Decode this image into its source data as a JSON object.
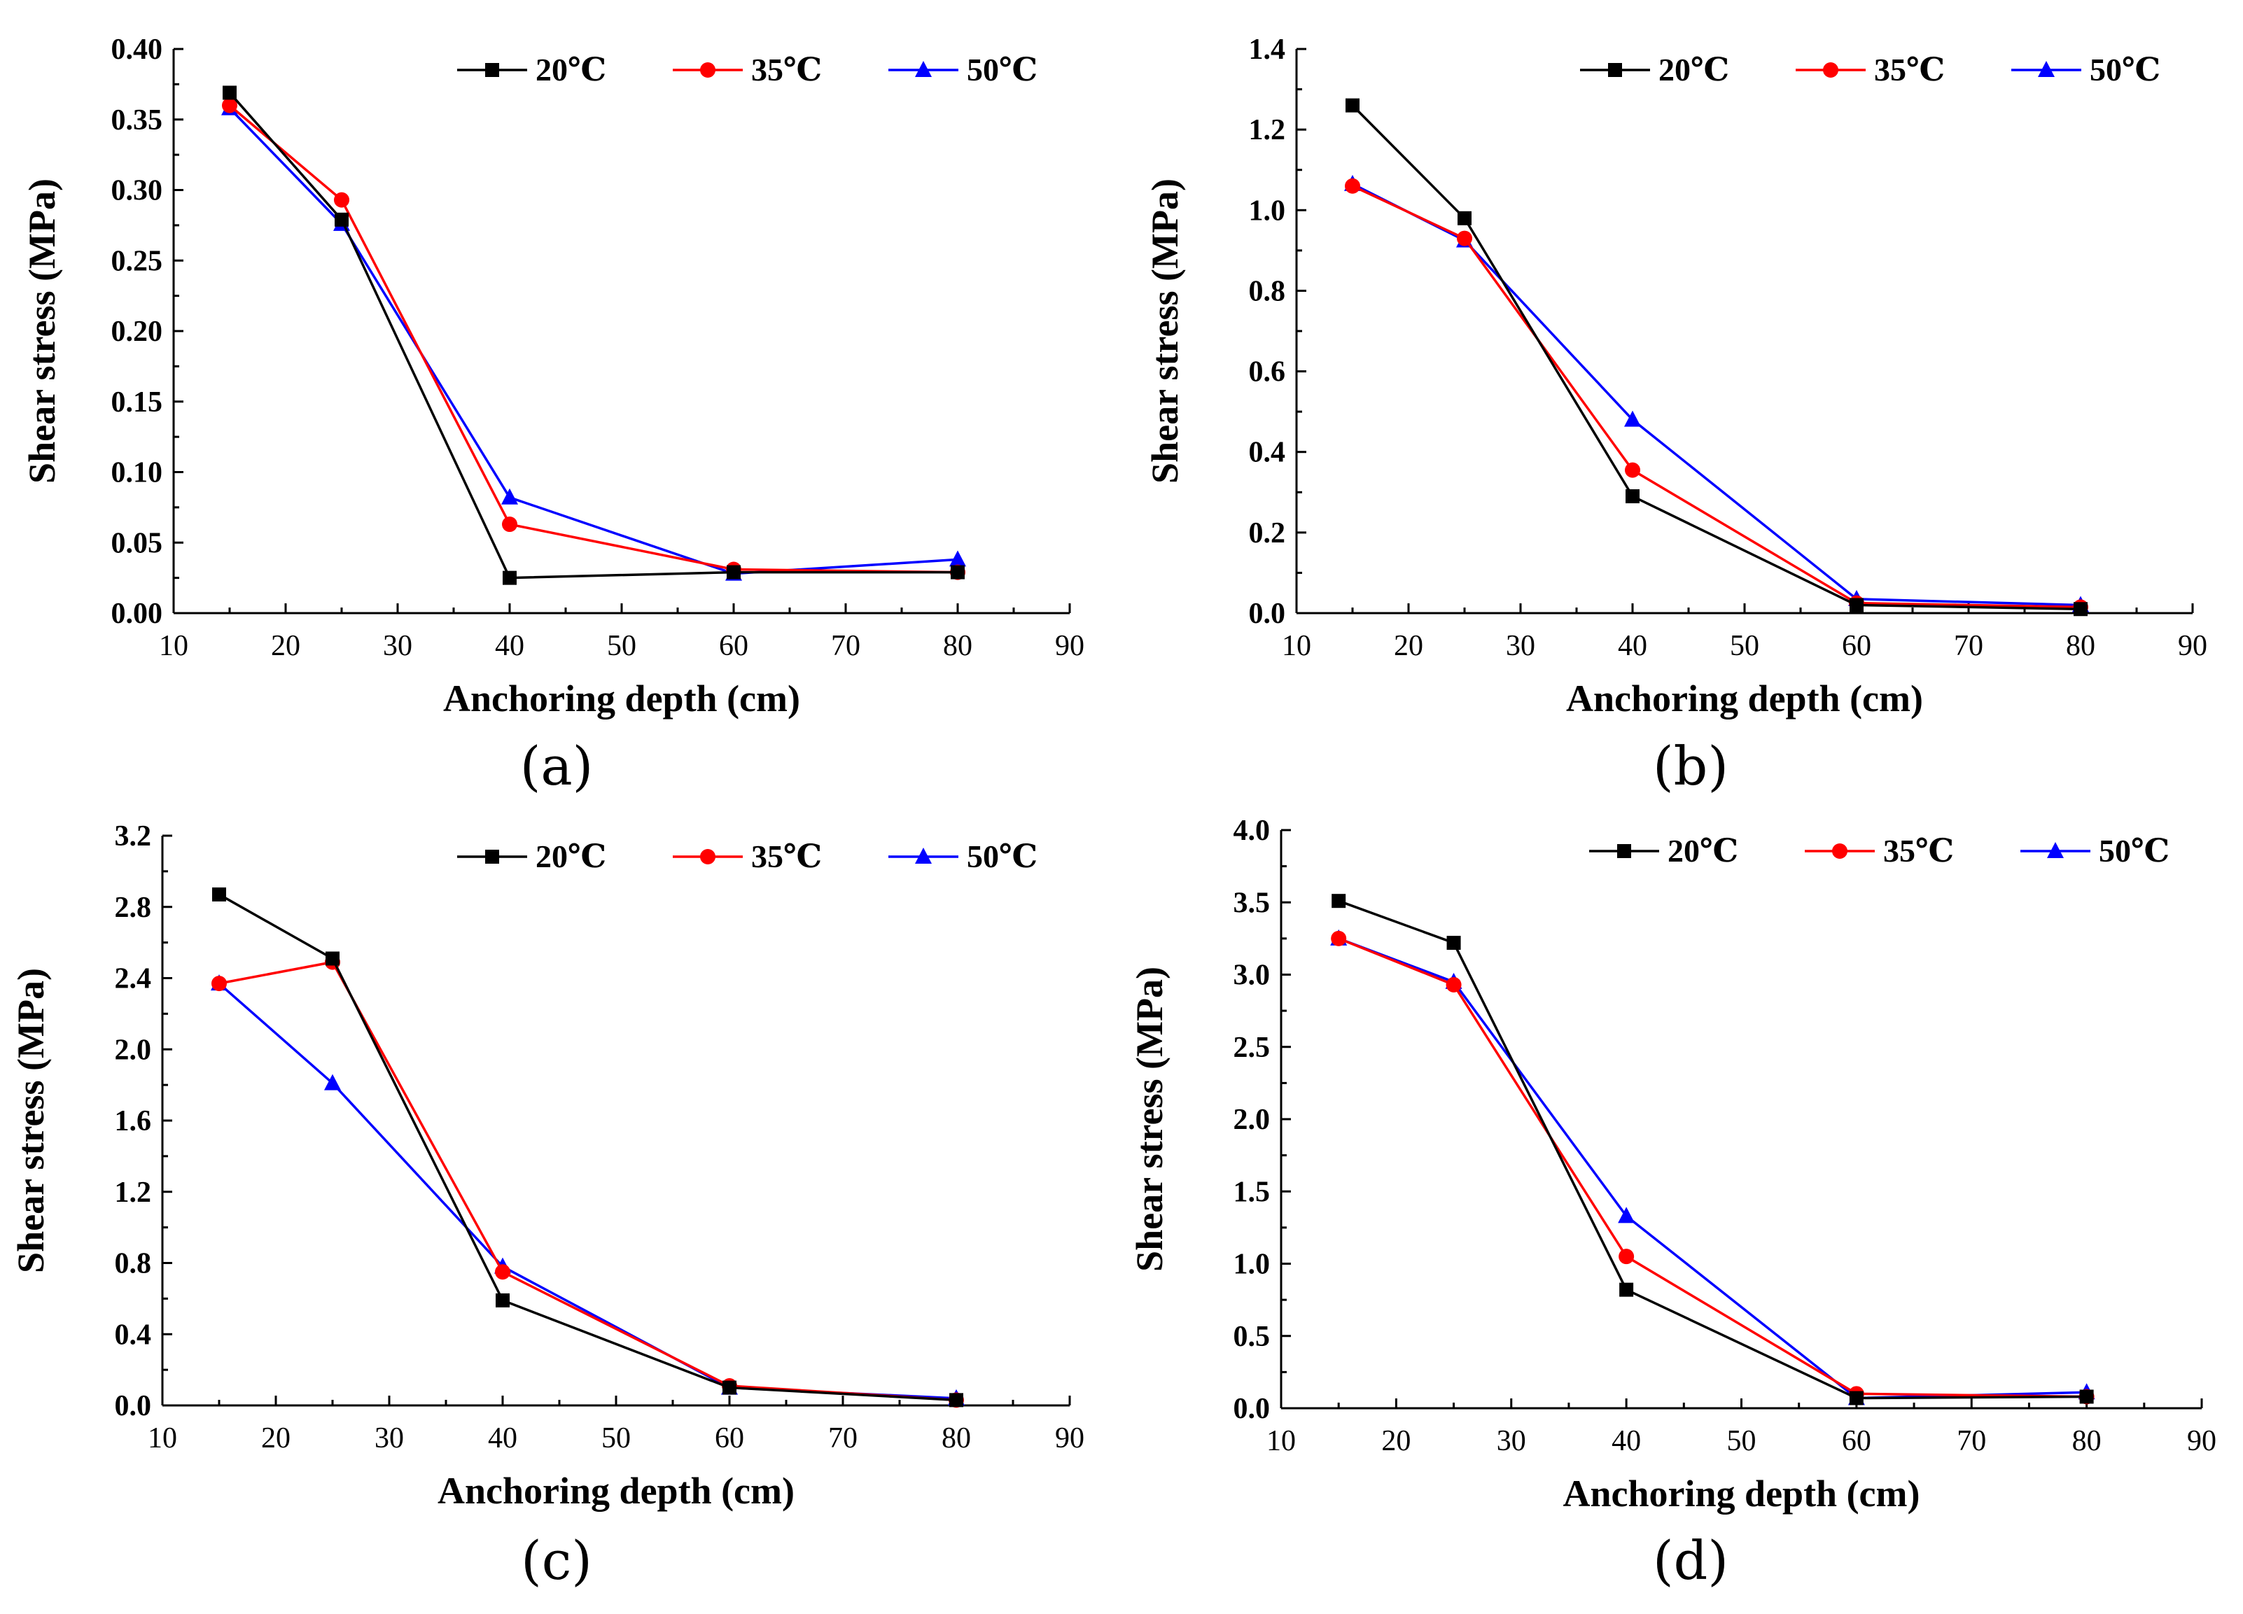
{
  "chart_data": [
    {
      "panel": "(a)",
      "type": "line",
      "xlabel": "Anchoring depth (cm)",
      "ylabel": "Shear stress (MPa)",
      "xlim": [
        10,
        90
      ],
      "ylim": [
        0,
        0.4
      ],
      "xticks": [
        "10",
        "20",
        "30",
        "40",
        "50",
        "60",
        "70",
        "80",
        "90"
      ],
      "yticks": [
        "0.00",
        "0.05",
        "0.10",
        "0.15",
        "0.20",
        "0.25",
        "0.30",
        "0.35",
        "0.40"
      ],
      "legend": "top-right",
      "x": [
        15,
        25,
        40,
        60,
        80
      ],
      "series": [
        {
          "name": "20℃",
          "color": "#000000",
          "marker": "square",
          "values": [
            0.369,
            0.279,
            0.025,
            0.029,
            0.029
          ]
        },
        {
          "name": "35℃",
          "color": "#ff0000",
          "marker": "circle",
          "values": [
            0.36,
            0.293,
            0.063,
            0.031,
            0.029
          ]
        },
        {
          "name": "50℃",
          "color": "#0000ff",
          "marker": "triangle",
          "values": [
            0.358,
            0.276,
            0.082,
            0.028,
            0.038
          ]
        }
      ]
    },
    {
      "panel": "(b)",
      "type": "line",
      "xlabel": "Anchoring depth (cm)",
      "ylabel": "Shear stress (MPa)",
      "xlim": [
        10,
        90
      ],
      "ylim": [
        0,
        1.4
      ],
      "xticks": [
        "10",
        "20",
        "30",
        "40",
        "50",
        "60",
        "70",
        "80",
        "90"
      ],
      "yticks": [
        "0.0",
        "0.2",
        "0.4",
        "0.6",
        "0.8",
        "1.0",
        "1.2",
        "1.4"
      ],
      "legend": "top-right",
      "x": [
        15,
        25,
        40,
        60,
        80
      ],
      "series": [
        {
          "name": "20℃",
          "color": "#000000",
          "marker": "square",
          "values": [
            1.26,
            0.98,
            0.29,
            0.02,
            0.01
          ]
        },
        {
          "name": "35℃",
          "color": "#ff0000",
          "marker": "circle",
          "values": [
            1.06,
            0.93,
            0.355,
            0.025,
            0.015
          ]
        },
        {
          "name": "50℃",
          "color": "#0000ff",
          "marker": "triangle",
          "values": [
            1.065,
            0.925,
            0.48,
            0.035,
            0.02
          ]
        }
      ]
    },
    {
      "panel": "(c)",
      "type": "line",
      "xlabel": "Anchoring depth (cm)",
      "ylabel": "Shear stress (MPa)",
      "xlim": [
        10,
        90
      ],
      "ylim": [
        0,
        3.2
      ],
      "xticks": [
        "10",
        "20",
        "30",
        "40",
        "50",
        "60",
        "70",
        "80",
        "90"
      ],
      "yticks": [
        "0.0",
        "0.4",
        "0.8",
        "1.2",
        "1.6",
        "2.0",
        "2.4",
        "2.8",
        "3.2"
      ],
      "legend": "top-right",
      "x": [
        15,
        25,
        40,
        60,
        80
      ],
      "series": [
        {
          "name": "20℃",
          "color": "#000000",
          "marker": "square",
          "values": [
            2.87,
            2.51,
            0.59,
            0.1,
            0.03
          ]
        },
        {
          "name": "35℃",
          "color": "#ff0000",
          "marker": "circle",
          "values": [
            2.37,
            2.49,
            0.75,
            0.11,
            0.03
          ]
        },
        {
          "name": "50℃",
          "color": "#0000ff",
          "marker": "triangle",
          "values": [
            2.37,
            1.81,
            0.78,
            0.1,
            0.04
          ]
        }
      ]
    },
    {
      "panel": "(d)",
      "type": "line",
      "xlabel": "Anchoring depth (cm)",
      "ylabel": "Shear stress (MPa)",
      "xlim": [
        10,
        90
      ],
      "ylim": [
        0,
        4.0
      ],
      "xticks": [
        "10",
        "20",
        "30",
        "40",
        "50",
        "60",
        "70",
        "80",
        "90"
      ],
      "yticks": [
        "0.0",
        "0.5",
        "1.0",
        "1.5",
        "2.0",
        "2.5",
        "3.0",
        "3.5",
        "4.0"
      ],
      "legend": "top-right",
      "x": [
        15,
        25,
        40,
        60,
        80
      ],
      "series": [
        {
          "name": "20℃",
          "color": "#000000",
          "marker": "square",
          "values": [
            3.51,
            3.22,
            0.82,
            0.07,
            0.08
          ]
        },
        {
          "name": "35℃",
          "color": "#ff0000",
          "marker": "circle",
          "values": [
            3.25,
            2.93,
            1.05,
            0.1,
            0.08
          ]
        },
        {
          "name": "50℃",
          "color": "#0000ff",
          "marker": "triangle",
          "values": [
            3.25,
            2.95,
            1.33,
            0.07,
            0.11
          ]
        }
      ]
    }
  ]
}
